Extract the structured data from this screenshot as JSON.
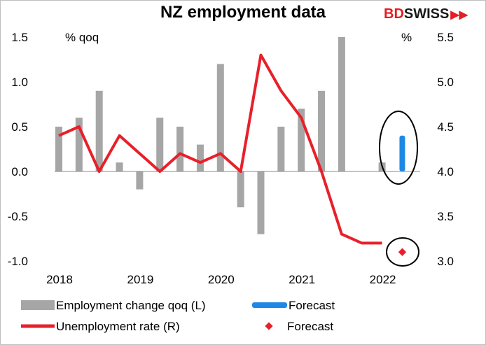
{
  "header": {
    "title": "NZ employment data",
    "logo_part1": "BD",
    "logo_part2": "SWISS",
    "logo_arrows": "▶▶"
  },
  "chart_data": {
    "type": "bar+line",
    "title": "NZ employment data",
    "left_unit": "% qoq",
    "right_unit": "%",
    "left_ylim": [
      -1.0,
      1.5
    ],
    "right_ylim": [
      3.0,
      5.5
    ],
    "left_ticks": [
      "-1.0",
      "-0.5",
      "0.0",
      "0.5",
      "1.0",
      "1.5"
    ],
    "right_ticks": [
      "3.0",
      "3.5",
      "4.0",
      "4.5",
      "5.0",
      "5.5"
    ],
    "x_ticks": [
      "2018",
      "2019",
      "2020",
      "2021",
      "2022"
    ],
    "grid": false,
    "legend_position": "bottom",
    "colors": {
      "bars": "#a6a6a6",
      "forecast_bar": "#1e88e5",
      "line": "#e8202a",
      "forecast_point": "#e8202a",
      "circle": "#000000"
    },
    "series": [
      {
        "name": "Employment change qoq (L)",
        "axis": "left",
        "kind": "bar",
        "quarters": [
          "2018Q1",
          "2018Q2",
          "2018Q3",
          "2018Q4",
          "2019Q1",
          "2019Q2",
          "2019Q3",
          "2019Q4",
          "2020Q1",
          "2020Q2",
          "2020Q3",
          "2020Q4",
          "2021Q1",
          "2021Q2",
          "2021Q3",
          "2021Q4",
          "2022Q1"
        ],
        "values": [
          0.5,
          0.6,
          0.9,
          0.1,
          -0.2,
          0.6,
          0.5,
          0.3,
          1.2,
          -0.4,
          -0.7,
          0.5,
          0.7,
          0.9,
          1.6,
          null,
          0.1
        ]
      },
      {
        "name": "Forecast",
        "axis": "left",
        "kind": "bar",
        "quarters": [
          "2022Q2"
        ],
        "values": [
          0.4
        ]
      },
      {
        "name": "Unemployment rate (R)",
        "axis": "right",
        "kind": "line",
        "quarters": [
          "2018Q1",
          "2018Q2",
          "2018Q3",
          "2018Q4",
          "2019Q1",
          "2019Q2",
          "2019Q3",
          "2019Q4",
          "2020Q1",
          "2020Q2",
          "2020Q3",
          "2020Q4",
          "2021Q1",
          "2021Q2",
          "2021Q3",
          "2021Q4",
          "2022Q1"
        ],
        "values": [
          4.4,
          4.5,
          4.0,
          4.4,
          4.2,
          4.0,
          4.2,
          4.1,
          4.2,
          4.0,
          5.3,
          4.9,
          4.6,
          4.0,
          3.3,
          3.2,
          3.2
        ]
      },
      {
        "name": "Forecast",
        "axis": "right",
        "kind": "point",
        "quarters": [
          "2022Q2"
        ],
        "values": [
          3.1
        ]
      }
    ]
  }
}
